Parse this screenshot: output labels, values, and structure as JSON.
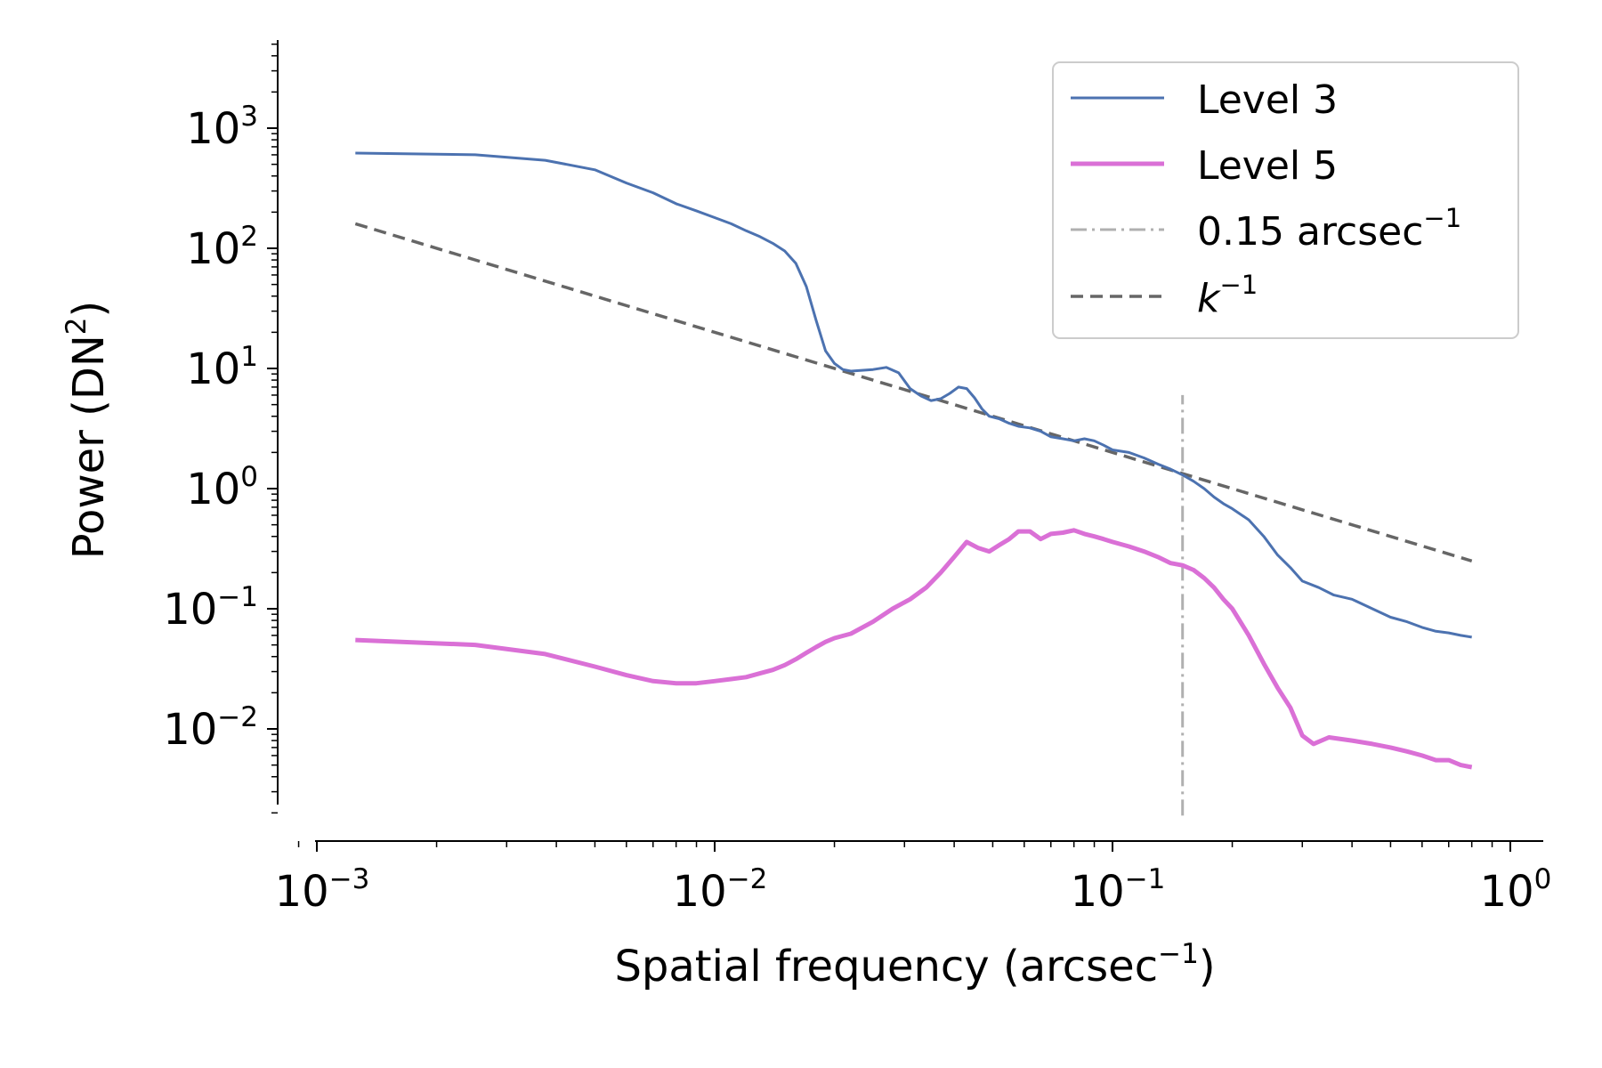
{
  "chart_data": {
    "type": "line",
    "xscale": "log",
    "yscale": "log",
    "xlabel": {
      "base": "Spatial frequency (arcsec",
      "sup": "−1",
      "tail": ")"
    },
    "ylabel": {
      "base": "Power (DN",
      "sup": "2",
      "tail": ")"
    },
    "xlim": [
      0.00088,
      1.1
    ],
    "ylim": [
      0.0016,
      5000
    ],
    "xticks": [
      {
        "value": 0.001,
        "base": "10",
        "exp": "−3"
      },
      {
        "value": 0.01,
        "base": "10",
        "exp": "−2"
      },
      {
        "value": 0.1,
        "base": "10",
        "exp": "−1"
      },
      {
        "value": 1,
        "base": "10",
        "exp": "0"
      }
    ],
    "yticks": [
      {
        "value": 0.01,
        "base": "10",
        "exp": "−2"
      },
      {
        "value": 0.1,
        "base": "10",
        "exp": "−1"
      },
      {
        "value": 1,
        "base": "10",
        "exp": "0"
      },
      {
        "value": 10,
        "base": "10",
        "exp": "1"
      },
      {
        "value": 100,
        "base": "10",
        "exp": "2"
      },
      {
        "value": 1000,
        "base": "10",
        "exp": "3"
      }
    ],
    "legend_position": "top-right",
    "series": [
      {
        "name": "Level 3",
        "color": "#4c72b0",
        "width": 3,
        "dash": "",
        "x": [
          0.00125,
          0.0025,
          0.00375,
          0.005,
          0.006,
          0.007,
          0.008,
          0.009,
          0.01,
          0.011,
          0.012,
          0.013,
          0.014,
          0.015,
          0.016,
          0.017,
          0.018,
          0.019,
          0.02,
          0.021,
          0.022,
          0.023,
          0.025,
          0.027,
          0.029,
          0.031,
          0.033,
          0.035,
          0.037,
          0.039,
          0.041,
          0.043,
          0.045,
          0.047,
          0.049,
          0.052,
          0.055,
          0.058,
          0.062,
          0.066,
          0.07,
          0.075,
          0.08,
          0.085,
          0.09,
          0.095,
          0.1,
          0.11,
          0.12,
          0.13,
          0.14,
          0.15,
          0.16,
          0.17,
          0.18,
          0.19,
          0.2,
          0.22,
          0.24,
          0.26,
          0.28,
          0.3,
          0.33,
          0.36,
          0.4,
          0.45,
          0.5,
          0.55,
          0.6,
          0.65,
          0.7,
          0.75,
          0.8
        ],
        "y": [
          620,
          600,
          540,
          450,
          350,
          290,
          235,
          205,
          180,
          160,
          140,
          125,
          110,
          95,
          75,
          48,
          25,
          14,
          11,
          9.8,
          9.5,
          9.6,
          9.8,
          10.2,
          9.2,
          6.8,
          5.9,
          5.4,
          5.6,
          6.2,
          7.0,
          6.8,
          5.7,
          4.6,
          4.0,
          3.8,
          3.5,
          3.3,
          3.2,
          3.0,
          2.7,
          2.6,
          2.5,
          2.6,
          2.5,
          2.3,
          2.1,
          2.0,
          1.8,
          1.6,
          1.45,
          1.3,
          1.15,
          1.0,
          0.85,
          0.75,
          0.68,
          0.55,
          0.4,
          0.28,
          0.22,
          0.17,
          0.15,
          0.13,
          0.12,
          0.1,
          0.085,
          0.078,
          0.07,
          0.065,
          0.063,
          0.06,
          0.058
        ]
      },
      {
        "name": "Level 5",
        "color": "#da70d6",
        "width": 5,
        "dash": "",
        "x": [
          0.00125,
          0.0025,
          0.00375,
          0.005,
          0.006,
          0.007,
          0.008,
          0.009,
          0.01,
          0.011,
          0.012,
          0.013,
          0.014,
          0.015,
          0.016,
          0.017,
          0.018,
          0.019,
          0.02,
          0.022,
          0.025,
          0.028,
          0.031,
          0.034,
          0.037,
          0.04,
          0.043,
          0.046,
          0.049,
          0.052,
          0.055,
          0.058,
          0.062,
          0.066,
          0.07,
          0.075,
          0.08,
          0.085,
          0.09,
          0.095,
          0.1,
          0.11,
          0.12,
          0.13,
          0.14,
          0.15,
          0.16,
          0.17,
          0.18,
          0.19,
          0.2,
          0.22,
          0.24,
          0.26,
          0.28,
          0.3,
          0.32,
          0.35,
          0.4,
          0.45,
          0.5,
          0.55,
          0.6,
          0.65,
          0.7,
          0.75,
          0.8
        ],
        "y": [
          0.055,
          0.05,
          0.042,
          0.033,
          0.028,
          0.025,
          0.024,
          0.024,
          0.025,
          0.026,
          0.027,
          0.029,
          0.031,
          0.034,
          0.038,
          0.043,
          0.048,
          0.053,
          0.057,
          0.062,
          0.078,
          0.1,
          0.12,
          0.15,
          0.2,
          0.27,
          0.36,
          0.32,
          0.3,
          0.34,
          0.38,
          0.44,
          0.44,
          0.38,
          0.42,
          0.43,
          0.45,
          0.42,
          0.4,
          0.38,
          0.36,
          0.33,
          0.3,
          0.27,
          0.24,
          0.23,
          0.21,
          0.18,
          0.15,
          0.12,
          0.1,
          0.06,
          0.035,
          0.022,
          0.015,
          0.0088,
          0.0075,
          0.0085,
          0.008,
          0.0075,
          0.007,
          0.0065,
          0.006,
          0.0055,
          0.0055,
          0.005,
          0.0048
        ]
      },
      {
        "name": "0.15 arcsec−1",
        "legend_base": "0.15 arcsec",
        "legend_sup": "−1",
        "color": "#b0b0b0",
        "width": 3,
        "dash": "18,6,3,6",
        "x": [
          0.15,
          0.15
        ],
        "y": [
          0.0019,
          6
        ]
      },
      {
        "name": "k−1",
        "legend_base": "k",
        "legend_sup": "−1",
        "legend_italic": true,
        "color": "#666666",
        "width": 3.5,
        "dash": "14,8",
        "x": [
          0.00125,
          0.8
        ],
        "y": [
          160,
          0.25
        ]
      }
    ]
  }
}
